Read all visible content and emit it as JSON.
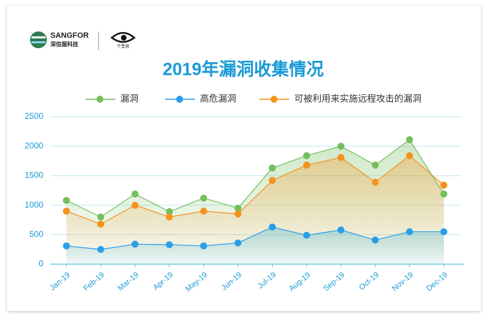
{
  "logo": {
    "brand": "SANGFOR",
    "brand_cn": "深信服科技",
    "product": "千里目"
  },
  "chart_data": {
    "type": "line",
    "title": "2019年漏洞收集情况",
    "categories": [
      "Jan-19",
      "Feb-19",
      "Mar-19",
      "Apr-19",
      "May-19",
      "Jun-19",
      "Jul-19",
      "Aug-19",
      "Sep-19",
      "Oct-19",
      "Nov-19",
      "Dec-19"
    ],
    "series": [
      {
        "name": "漏洞",
        "color": "#74bf5e",
        "values": [
          1080,
          800,
          1190,
          890,
          1120,
          950,
          1630,
          1840,
          2000,
          1680,
          2110,
          1190
        ]
      },
      {
        "name": "高危漏洞",
        "color": "#2b9ee8",
        "values": [
          310,
          250,
          340,
          330,
          310,
          360,
          630,
          490,
          580,
          410,
          550,
          550
        ]
      },
      {
        "name": "可被利用来实施远程攻击的漏洞",
        "color": "#f5921e",
        "values": [
          900,
          680,
          1000,
          800,
          900,
          850,
          1420,
          1680,
          1810,
          1390,
          1840,
          1340
        ]
      }
    ],
    "ylim": [
      0,
      2500
    ],
    "yticks": [
      0,
      500,
      1000,
      1500,
      2000,
      2500
    ],
    "grid": true,
    "legend": "top"
  }
}
